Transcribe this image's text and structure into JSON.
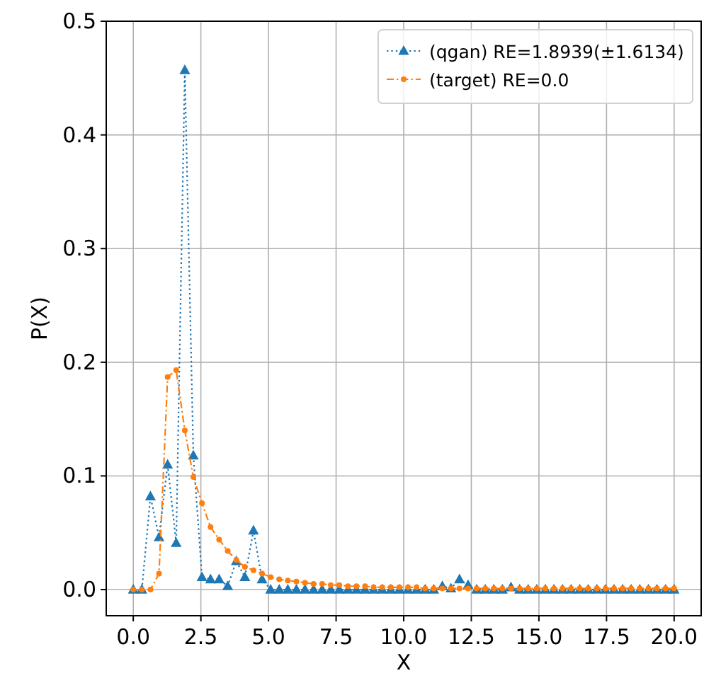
{
  "chart_data": {
    "type": "line",
    "xlabel": "X",
    "ylabel": "P(X)",
    "x": [
      0,
      0.317,
      0.635,
      0.952,
      1.27,
      1.587,
      1.905,
      2.222,
      2.54,
      2.857,
      3.175,
      3.492,
      3.81,
      4.127,
      4.444,
      4.762,
      5.079,
      5.397,
      5.714,
      6.032,
      6.349,
      6.667,
      6.984,
      7.302,
      7.619,
      7.937,
      8.254,
      8.571,
      8.889,
      9.206,
      9.524,
      9.841,
      10.159,
      10.476,
      10.794,
      11.111,
      11.429,
      11.746,
      12.063,
      12.381,
      12.698,
      13.016,
      13.333,
      13.651,
      13.968,
      14.286,
      14.603,
      14.921,
      15.238,
      15.556,
      15.873,
      16.19,
      16.508,
      16.825,
      17.143,
      17.46,
      17.778,
      18.095,
      18.413,
      18.73,
      19.048,
      19.365,
      19.683,
      20
    ],
    "series": [
      {
        "name": "(qgan) RE=1.8939(±1.6134)",
        "color": "#1f77b4",
        "marker": "triangle",
        "line_style": "dotted",
        "values": [
          0,
          0,
          0.082,
          0.046,
          0.11,
          0.041,
          0.457,
          0.118,
          0.011,
          0.009,
          0.009,
          0.003,
          0.025,
          0.011,
          0.052,
          0.009,
          0,
          0,
          0,
          0,
          0,
          0,
          0,
          0,
          0,
          0,
          0,
          0,
          0,
          0,
          0,
          0,
          0,
          0,
          0,
          0,
          0.003,
          0.001,
          0.009,
          0.004,
          0,
          0,
          0,
          0,
          0.002,
          0,
          0,
          0,
          0,
          0,
          0,
          0,
          0,
          0,
          0,
          0,
          0,
          0,
          0,
          0,
          0,
          0,
          0,
          0
        ]
      },
      {
        "name": "(target) RE=0.0",
        "color": "#ff7f0e",
        "marker": "circle",
        "line_style": "dashed",
        "values": [
          0,
          0,
          0,
          0.014,
          0.187,
          0.193,
          0.14,
          0.099,
          0.076,
          0.055,
          0.044,
          0.034,
          0.026,
          0.02,
          0.017,
          0.014,
          0.011,
          0.009,
          0.008,
          0.007,
          0.006,
          0.005,
          0.005,
          0.004,
          0.004,
          0.003,
          0.003,
          0.003,
          0.002,
          0.002,
          0.002,
          0.002,
          0.002,
          0.002,
          0.001,
          0.001,
          0.001,
          0.001,
          0.001,
          0.001,
          0.001,
          0.001,
          0.001,
          0.001,
          0.001,
          0.001,
          0.001,
          0.001,
          0.001,
          0.001,
          0.001,
          0.001,
          0.001,
          0.001,
          0.001,
          0.001,
          0.001,
          0.001,
          0.001,
          0.001,
          0.001,
          0.001,
          0.001,
          0.001
        ]
      }
    ],
    "xlim": [
      -1,
      21
    ],
    "ylim": [
      -0.023,
      0.5
    ],
    "xticks": [
      {
        "value": 0,
        "label": "0.0"
      },
      {
        "value": 2.5,
        "label": "2.5"
      },
      {
        "value": 5,
        "label": "5.0"
      },
      {
        "value": 7.5,
        "label": "7.5"
      },
      {
        "value": 10,
        "label": "10.0"
      },
      {
        "value": 12.5,
        "label": "12.5"
      },
      {
        "value": 15,
        "label": "15.0"
      },
      {
        "value": 17.5,
        "label": "17.5"
      },
      {
        "value": 20,
        "label": "20.0"
      }
    ],
    "yticks": [
      {
        "value": 0,
        "label": "0.0"
      },
      {
        "value": 0.1,
        "label": "0.1"
      },
      {
        "value": 0.2,
        "label": "0.2"
      },
      {
        "value": 0.3,
        "label": "0.3"
      },
      {
        "value": 0.4,
        "label": "0.4"
      },
      {
        "value": 0.5,
        "label": "0.5"
      }
    ],
    "grid": true,
    "legend": "top right"
  }
}
